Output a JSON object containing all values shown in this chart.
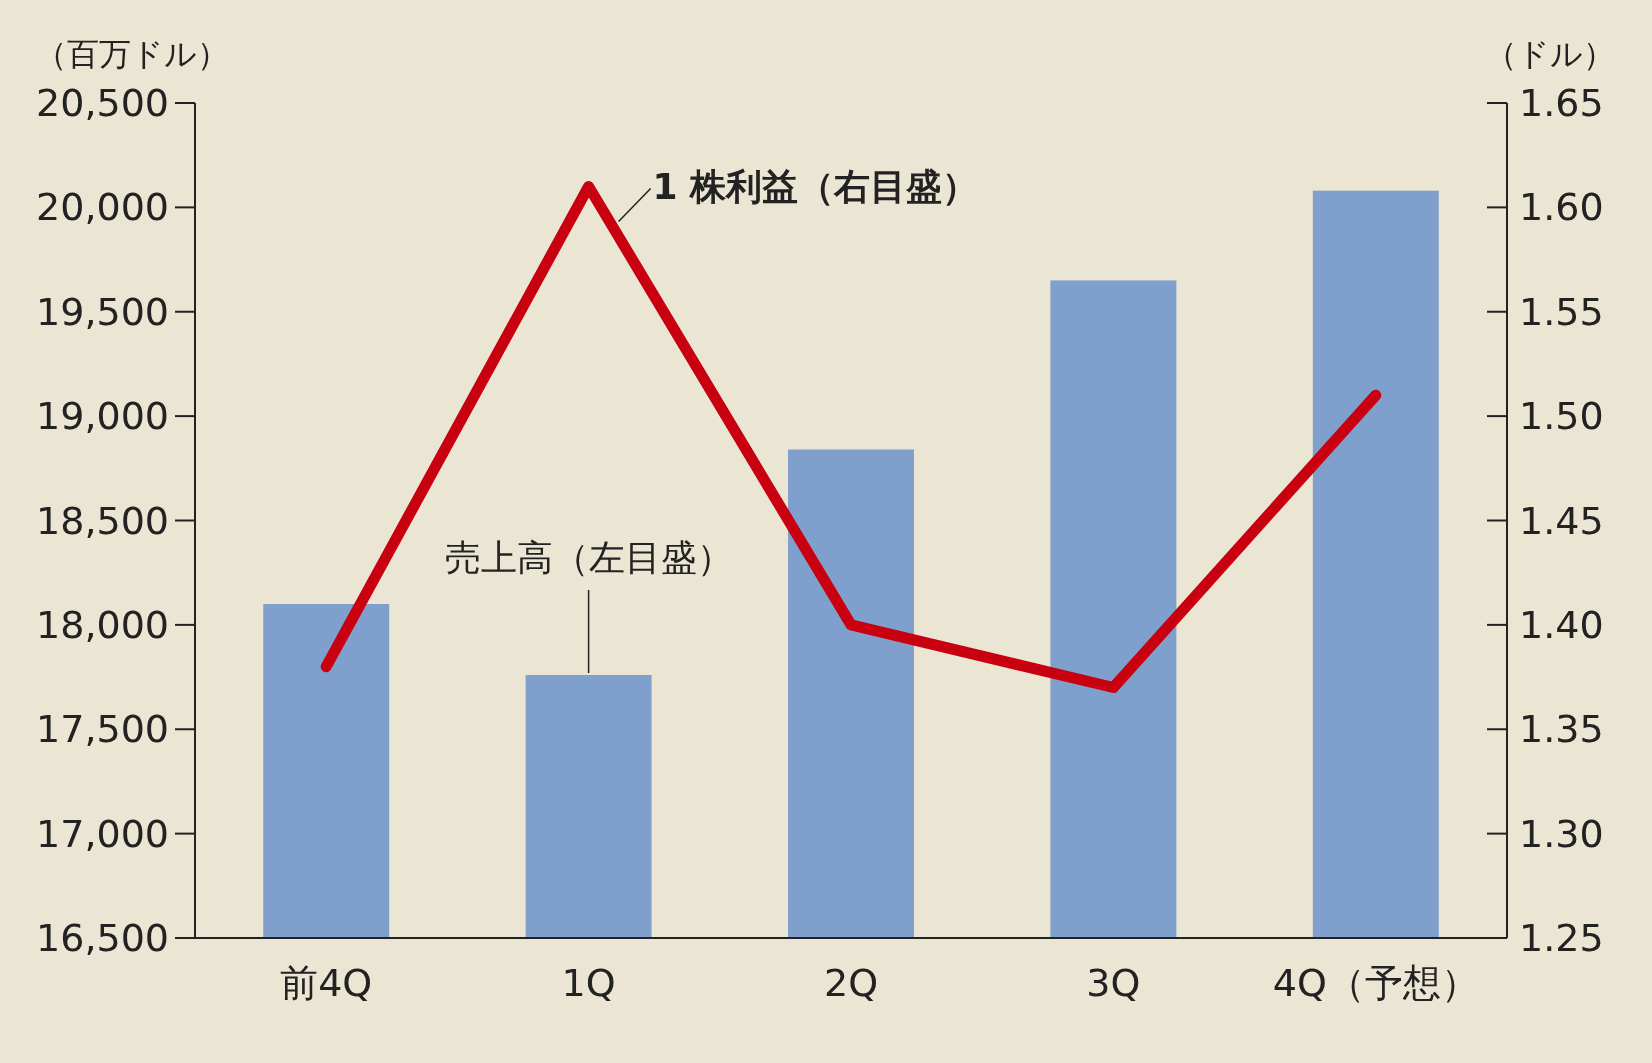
{
  "chart_data": {
    "type": "bar",
    "categories": [
      "前4Q",
      "1Q",
      "2Q",
      "3Q",
      "4Q（予想）"
    ],
    "ylabel": "（百万ドル）",
    "y2label": "（ドル）",
    "ylim": [
      16500,
      20500
    ],
    "yticks": [
      {
        "value": 16500,
        "label": "16,500"
      },
      {
        "value": 17000,
        "label": "17,000"
      },
      {
        "value": 17500,
        "label": "17,500"
      },
      {
        "value": 18000,
        "label": "18,000"
      },
      {
        "value": 18500,
        "label": "18,500"
      },
      {
        "value": 19000,
        "label": "19,000"
      },
      {
        "value": 19500,
        "label": "19,500"
      },
      {
        "value": 20000,
        "label": "20,000"
      },
      {
        "value": 20500,
        "label": "20,500"
      }
    ],
    "y2lim": [
      1.25,
      1.65
    ],
    "y2ticks": [
      {
        "value": 1.25,
        "label": "1.25"
      },
      {
        "value": 1.3,
        "label": "1.30"
      },
      {
        "value": 1.35,
        "label": "1.35"
      },
      {
        "value": 1.4,
        "label": "1.40"
      },
      {
        "value": 1.45,
        "label": "1.45"
      },
      {
        "value": 1.5,
        "label": "1.50"
      },
      {
        "value": 1.55,
        "label": "1.55"
      },
      {
        "value": 1.6,
        "label": "1.60"
      },
      {
        "value": 1.65,
        "label": "1.65"
      }
    ],
    "series": [
      {
        "name": "売上高（左目盛）",
        "color": "#7f9fcc",
        "values": [
          18100,
          17760,
          18840,
          19650,
          20080
        ]
      },
      {
        "name": "1 株利益（右目盛）",
        "type": "line",
        "axis": "y2",
        "color": "#c8000f",
        "values": [
          1.38,
          1.61,
          1.4,
          1.37,
          1.51
        ]
      }
    ]
  }
}
